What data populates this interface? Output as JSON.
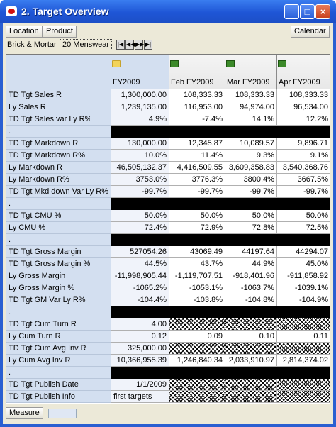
{
  "window": {
    "title": "2. Target Overview"
  },
  "toolbar": {
    "location": "Location",
    "product": "Product",
    "calendar": "Calendar"
  },
  "pagebar": {
    "location_value": "Brick & Mortar",
    "product_value": "20 Menswear"
  },
  "columns": [
    "FY2009",
    "Feb FY2009",
    "Mar FY2009",
    "Apr FY2009"
  ],
  "rows": [
    {
      "label": "TD Tgt Sales R",
      "values": [
        "1,300,000.00",
        "108,333.33",
        "108,333.33",
        "108,333.33"
      ]
    },
    {
      "label": "Ly Sales R",
      "values": [
        "1,239,135.00",
        "116,953.00",
        "94,974.00",
        "96,534.00"
      ]
    },
    {
      "label": "TD Tgt Sales var Ly R%",
      "values": [
        "4.9%",
        "-7.4%",
        "14.1%",
        "12.2%"
      ]
    },
    {
      "label": ".",
      "black": true
    },
    {
      "label": "TD Tgt Markdown R",
      "values": [
        "130,000.00",
        "12,345.87",
        "10,089.57",
        "9,896.71"
      ]
    },
    {
      "label": "TD Tgt Markdown R%",
      "values": [
        "10.0%",
        "11.4%",
        "9.3%",
        "9.1%"
      ]
    },
    {
      "label": "Ly Markdown R",
      "values": [
        "46,505,132.37",
        "4,416,509.55",
        "3,609,358.83",
        "3,540,368.76"
      ]
    },
    {
      "label": "Ly Markdown R%",
      "values": [
        "3753.0%",
        "3776.3%",
        "3800.4%",
        "3667.5%"
      ]
    },
    {
      "label": "TD Tgt Mkd down Var Ly R%",
      "values": [
        "-99.7%",
        "-99.7%",
        "-99.7%",
        "-99.7%"
      ]
    },
    {
      "label": ".",
      "black": true
    },
    {
      "label": "TD Tgt CMU %",
      "values": [
        "50.0%",
        "50.0%",
        "50.0%",
        "50.0%"
      ]
    },
    {
      "label": "Ly CMU %",
      "values": [
        "72.4%",
        "72.9%",
        "72.8%",
        "72.5%"
      ]
    },
    {
      "label": ".",
      "black": true
    },
    {
      "label": "TD Tgt Gross Margin",
      "values": [
        "527054.26",
        "43069.49",
        "44197.64",
        "44294.07"
      ]
    },
    {
      "label": "TD Tgt Gross Margin %",
      "values": [
        "44.5%",
        "43.7%",
        "44.9%",
        "45.0%"
      ]
    },
    {
      "label": "Ly Gross Margin",
      "values": [
        "-11,998,905.44",
        "-1,119,707.51",
        "-918,401.96",
        "-911,858.92"
      ]
    },
    {
      "label": "Ly Gross Margin %",
      "values": [
        "-1065.2%",
        "-1053.1%",
        "-1063.7%",
        "-1039.1%"
      ]
    },
    {
      "label": "TD Tgt GM Var Ly R%",
      "values": [
        "-104.4%",
        "-103.8%",
        "-104.8%",
        "-104.9%"
      ]
    },
    {
      "label": ".",
      "black": true
    },
    {
      "label": "TD Tgt Cum Turn R",
      "values": [
        "4.00",
        "",
        "",
        ""
      ],
      "hatch": [
        1,
        2,
        3
      ]
    },
    {
      "label": "Ly Cum Turn R",
      "values": [
        "0.12",
        "0.09",
        "0.10",
        "0.11"
      ]
    },
    {
      "label": "TD Tgt Cum Avg Inv R",
      "values": [
        "325,000.00",
        "",
        "",
        ""
      ],
      "hatch": [
        1,
        2,
        3
      ]
    },
    {
      "label": "Ly Cum Avg Inv R",
      "values": [
        "10,366,955.39",
        "1,246,840.34",
        "2,033,910.97",
        "2,814,374.02"
      ]
    },
    {
      "label": ".",
      "black": true
    },
    {
      "label": "TD Tgt Publish Date",
      "values": [
        "1/1/2009",
        "",
        "",
        ""
      ],
      "hatch": [
        1,
        2,
        3
      ]
    },
    {
      "label": "TD Tgt Publish Info",
      "values": [
        "first targets",
        "",
        "",
        ""
      ],
      "hatch": [
        1,
        2,
        3
      ],
      "leftFirst": true
    }
  ],
  "bottom": {
    "measure": "Measure"
  },
  "icons": {
    "location-nav": [
      "first-icon",
      "prev-icon",
      "next-icon",
      "last-icon"
    ]
  }
}
